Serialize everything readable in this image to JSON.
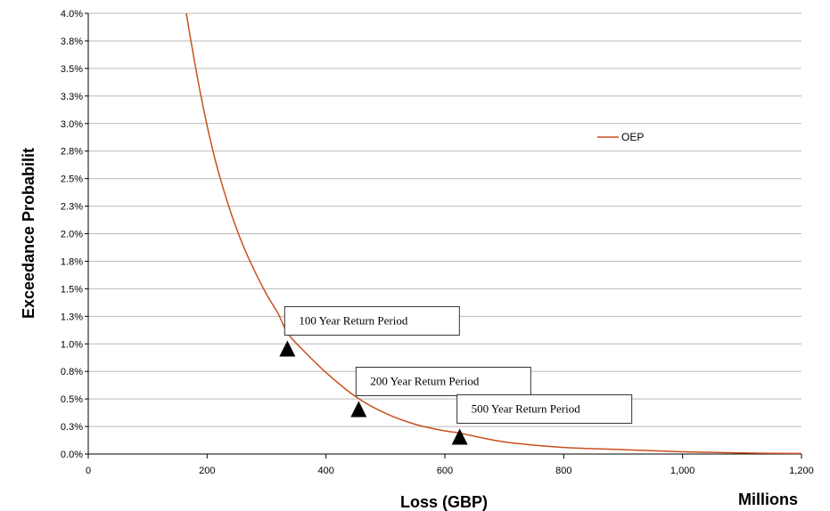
{
  "chart_data": {
    "type": "line",
    "ylabel": "Exceedance Probabilit",
    "xlabel": "Loss (GBP)",
    "x_unit_label": "Millions",
    "xlim": [
      0,
      1200
    ],
    "ylim": [
      0,
      0.04
    ],
    "grid": "horizontal",
    "legend_position": "right",
    "x_ticks": [
      {
        "value": 0,
        "label": "0"
      },
      {
        "value": 200,
        "label": "200"
      },
      {
        "value": 400,
        "label": "400"
      },
      {
        "value": 600,
        "label": "600"
      },
      {
        "value": 800,
        "label": "800"
      },
      {
        "value": 1000,
        "label": "1,000"
      },
      {
        "value": 1200,
        "label": "1,200"
      }
    ],
    "y_ticks": [
      {
        "value": 0.0,
        "label": "0.0%"
      },
      {
        "value": 0.0025,
        "label": "0.3%"
      },
      {
        "value": 0.005,
        "label": "0.5%"
      },
      {
        "value": 0.0075,
        "label": "0.8%"
      },
      {
        "value": 0.01,
        "label": "1.0%"
      },
      {
        "value": 0.0125,
        "label": "1.3%"
      },
      {
        "value": 0.015,
        "label": "1.5%"
      },
      {
        "value": 0.0175,
        "label": "1.8%"
      },
      {
        "value": 0.02,
        "label": "2.0%"
      },
      {
        "value": 0.0225,
        "label": "2.3%"
      },
      {
        "value": 0.025,
        "label": "2.5%"
      },
      {
        "value": 0.0275,
        "label": "2.8%"
      },
      {
        "value": 0.03,
        "label": "3.0%"
      },
      {
        "value": 0.0325,
        "label": "3.3%"
      },
      {
        "value": 0.035,
        "label": "3.5%"
      },
      {
        "value": 0.0375,
        "label": "3.8%"
      },
      {
        "value": 0.04,
        "label": "4.0%"
      }
    ],
    "series": [
      {
        "name": "OEP",
        "color": "#c8501e",
        "x": [
          165,
          175,
          190,
          205,
          220,
          240,
          260,
          280,
          300,
          320,
          335,
          360,
          400,
          450,
          500,
          550,
          600,
          625,
          700,
          800,
          900,
          1000,
          1100,
          1200
        ],
        "y": [
          0.04,
          0.0368,
          0.0324,
          0.0286,
          0.0254,
          0.0219,
          0.019,
          0.0166,
          0.0145,
          0.0127,
          0.011,
          0.0095,
          0.0074,
          0.0052,
          0.0037,
          0.0027,
          0.0021,
          0.0019,
          0.0011,
          0.0006,
          0.0004,
          0.0002,
          0.0001,
          5e-05
        ]
      }
    ],
    "annotations": [
      {
        "label": "100 Year Return Period",
        "x": 335,
        "y": 0.0095
      },
      {
        "label": "200 Year Return Period",
        "x": 455,
        "y": 0.004
      },
      {
        "label": "500 Year Return Period",
        "x": 625,
        "y": 0.0015
      }
    ]
  }
}
